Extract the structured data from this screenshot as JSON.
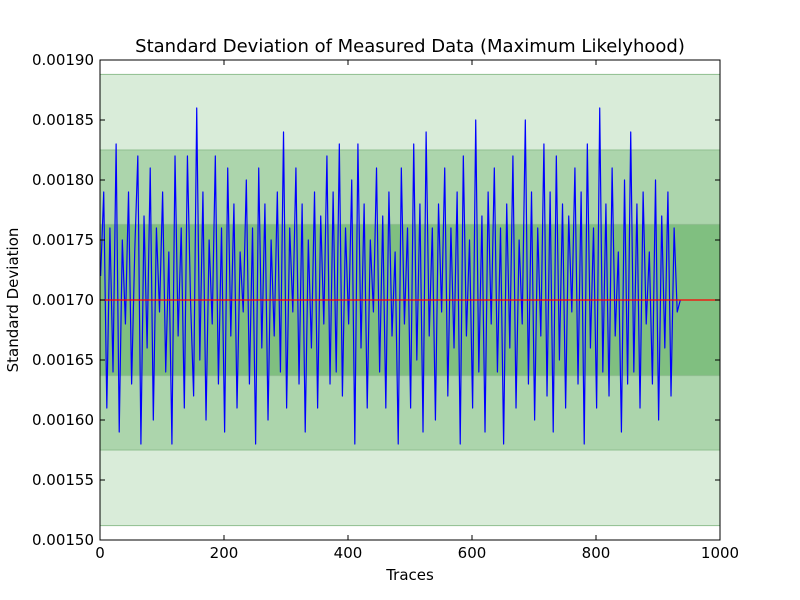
{
  "chart_data": {
    "type": "line",
    "title": "Standard Deviation of Measured Data (Maximum Likelyhood)",
    "xlabel": "Traces",
    "ylabel": "Standard Deviation",
    "xlim": [
      0,
      1000
    ],
    "ylim": [
      0.0015,
      0.0019
    ],
    "xticks": [
      "0",
      "200",
      "400",
      "600",
      "800",
      "1000"
    ],
    "xtick_values": [
      0,
      200,
      400,
      600,
      800,
      1000
    ],
    "yticks": [
      "0.00150",
      "0.00155",
      "0.00160",
      "0.00165",
      "0.00170",
      "0.00175",
      "0.00180",
      "0.00185",
      "0.00190"
    ],
    "ytick_values": [
      0.0015,
      0.00155,
      0.0016,
      0.00165,
      0.0017,
      0.00175,
      0.0018,
      0.00185,
      0.0019
    ],
    "grid": false,
    "legend": "none",
    "mean_line": {
      "y": 0.0017,
      "color": "#ff0000"
    },
    "bands": [
      {
        "low": 0.001512,
        "high": 0.001888,
        "color": "#d9ecd9"
      },
      {
        "low": 0.001575,
        "high": 0.001825,
        "color": "#acd5ac"
      },
      {
        "low": 0.001637,
        "high": 0.001763,
        "color": "#80bf80"
      }
    ],
    "series": [
      {
        "color": "#0000ff",
        "x_start": 1,
        "x_step": 5,
        "values": [
          0.00172,
          0.00179,
          0.00161,
          0.00176,
          0.00164,
          0.00183,
          0.00159,
          0.00175,
          0.00168,
          0.00179,
          0.00163,
          0.00174,
          0.00182,
          0.00158,
          0.00177,
          0.00166,
          0.00181,
          0.0016,
          0.00176,
          0.00169,
          0.00179,
          0.00164,
          0.00174,
          0.00158,
          0.00182,
          0.00167,
          0.00176,
          0.00161,
          0.00182,
          0.0017,
          0.00162,
          0.00186,
          0.00165,
          0.00179,
          0.0016,
          0.00175,
          0.00168,
          0.00182,
          0.00163,
          0.00176,
          0.00159,
          0.00181,
          0.00167,
          0.00178,
          0.00161,
          0.00174,
          0.00169,
          0.0018,
          0.00163,
          0.00176,
          0.00158,
          0.00181,
          0.00166,
          0.00178,
          0.0016,
          0.00175,
          0.00167,
          0.00179,
          0.00164,
          0.00184,
          0.00161,
          0.00176,
          0.00169,
          0.00181,
          0.00163,
          0.00178,
          0.00159,
          0.00175,
          0.00166,
          0.00179,
          0.00161,
          0.00177,
          0.00168,
          0.00182,
          0.00163,
          0.00179,
          0.00164,
          0.00183,
          0.00162,
          0.00176,
          0.00168,
          0.0018,
          0.00158,
          0.00183,
          0.00166,
          0.00178,
          0.00161,
          0.00175,
          0.00169,
          0.00181,
          0.00164,
          0.00177,
          0.00161,
          0.00179,
          0.00167,
          0.00174,
          0.00158,
          0.00181,
          0.00168,
          0.00176,
          0.00161,
          0.00183,
          0.00165,
          0.00178,
          0.00159,
          0.00184,
          0.00167,
          0.00176,
          0.0016,
          0.00178,
          0.00169,
          0.00181,
          0.00162,
          0.00176,
          0.00166,
          0.00179,
          0.00158,
          0.00182,
          0.00167,
          0.00175,
          0.00161,
          0.00185,
          0.00164,
          0.00177,
          0.00159,
          0.00179,
          0.00168,
          0.00181,
          0.00164,
          0.00176,
          0.00158,
          0.00178,
          0.00166,
          0.00182,
          0.00161,
          0.00175,
          0.00168,
          0.00185,
          0.00163,
          0.00179,
          0.0016,
          0.00176,
          0.00167,
          0.00183,
          0.00162,
          0.00179,
          0.00159,
          0.00182,
          0.00165,
          0.00178,
          0.00161,
          0.00177,
          0.00169,
          0.00181,
          0.00163,
          0.00179,
          0.00158,
          0.00183,
          0.00166,
          0.00176,
          0.00161,
          0.00186,
          0.00164,
          0.00178,
          0.00162,
          0.00181,
          0.00167,
          0.00174,
          0.00159,
          0.0018,
          0.00163,
          0.00184,
          0.00164,
          0.00178,
          0.00161,
          0.00179,
          0.00168,
          0.00174,
          0.00163,
          0.0018,
          0.0016,
          0.00177,
          0.00166,
          0.00179,
          0.00162,
          0.00176,
          0.00169,
          0.0017
        ]
      }
    ]
  }
}
